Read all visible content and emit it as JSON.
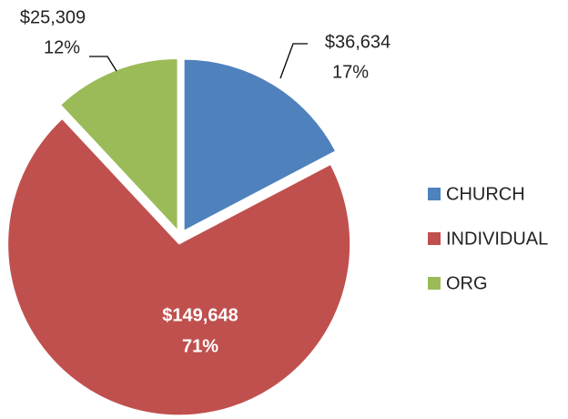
{
  "chart_data": {
    "type": "pie",
    "categories": [
      "CHURCH",
      "INDIVIDUAL",
      "ORG"
    ],
    "values": [
      36634,
      149648,
      25309
    ],
    "value_labels": [
      "$36,634",
      "$149,648",
      "$25,309"
    ],
    "percents": [
      17,
      71,
      12
    ],
    "percent_labels": [
      "17%",
      "71%",
      "12%"
    ],
    "colors": [
      "#4f81bd",
      "#c0504d",
      "#9bbb59"
    ],
    "legend": "right"
  }
}
